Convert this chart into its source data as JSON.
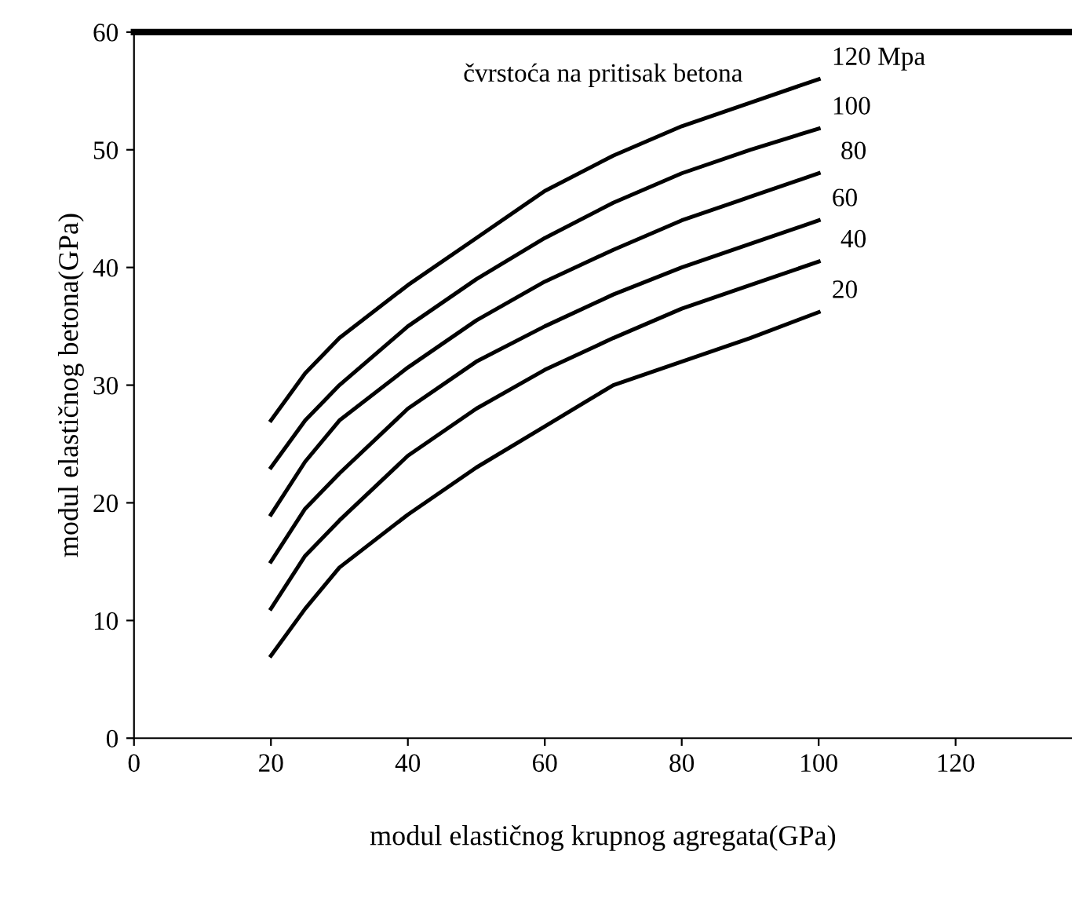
{
  "chart_data": {
    "type": "line",
    "legend_title": "čvrstoća na pritisak betona",
    "xlabel": "modul elastičnog krupnog agregata(GPa)",
    "ylabel": "modul elastičnog betona(GPa)",
    "x": [
      20,
      25,
      30,
      40,
      50,
      60,
      70,
      80,
      90,
      100
    ],
    "series": [
      {
        "name": "120 Mpa",
        "color": "#000000",
        "values": [
          27,
          31,
          34,
          38.5,
          42.5,
          46.5,
          49.5,
          52,
          54,
          56
        ]
      },
      {
        "name": "100",
        "color": "#000000",
        "values": [
          23,
          27,
          30,
          35,
          39,
          42.5,
          45.5,
          48,
          50,
          51.8
        ]
      },
      {
        "name": "80",
        "color": "#000000",
        "values": [
          19,
          23.5,
          27,
          31.5,
          35.5,
          38.8,
          41.5,
          44,
          46,
          48
        ]
      },
      {
        "name": "60",
        "color": "#000000",
        "values": [
          15,
          19.5,
          22.5,
          28,
          32,
          35,
          37.7,
          40,
          42,
          44
        ]
      },
      {
        "name": "40",
        "color": "#000000",
        "values": [
          11,
          15.5,
          18.5,
          24,
          28,
          31.3,
          34,
          36.5,
          38.5,
          40.5
        ]
      },
      {
        "name": "20",
        "color": "#000000",
        "values": [
          7,
          11,
          14.5,
          19,
          23,
          26.5,
          30,
          32,
          34,
          36.2
        ]
      }
    ],
    "xlim": [
      0,
      137
    ],
    "ylim": [
      0,
      60
    ],
    "xticks": [
      0,
      20,
      40,
      60,
      80,
      100,
      120
    ],
    "yticks": [
      0,
      10,
      20,
      30,
      40,
      50,
      60
    ],
    "grid": false,
    "legend": false,
    "marker": "none",
    "line_style": "solid"
  }
}
